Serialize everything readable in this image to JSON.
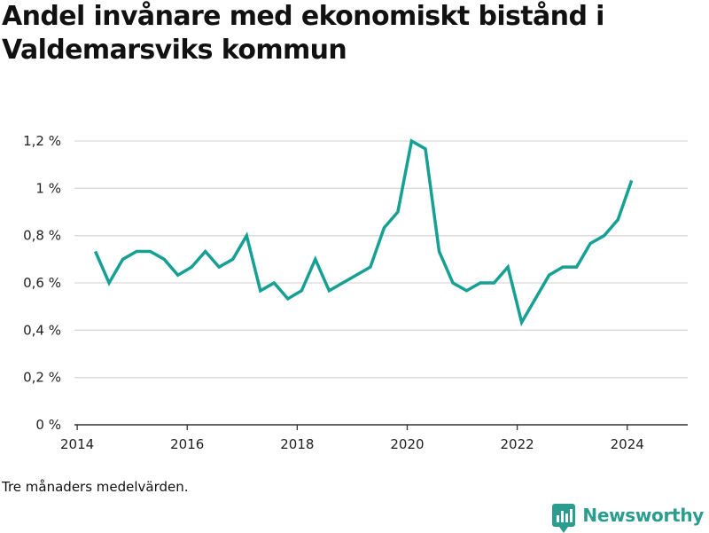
{
  "title": "Andel invånare med ekonomiskt bistånd i Valdemarsviks kommun",
  "note": "Tre månaders medelvärden.",
  "brand": {
    "name": "Newsworthy",
    "icon": "bar-chart-icon",
    "color": "#2a9d8f"
  },
  "chart_data": {
    "type": "line",
    "title": "Andel invånare med ekonomiskt bistånd i Valdemarsviks kommun",
    "xlabel": "",
    "ylabel": "",
    "xlim": [
      2013.95,
      2025.1
    ],
    "ylim": [
      0,
      1.2
    ],
    "y_ticks": [
      {
        "value": 0,
        "label": "0 %"
      },
      {
        "value": 0.2,
        "label": "0,2 %"
      },
      {
        "value": 0.4,
        "label": "0,4 %"
      },
      {
        "value": 0.6,
        "label": "0,6 %"
      },
      {
        "value": 0.8,
        "label": "0,8 %"
      },
      {
        "value": 1.0,
        "label": "1 %"
      },
      {
        "value": 1.2,
        "label": "1,2 %"
      }
    ],
    "x_ticks": [
      {
        "value": 2014,
        "label": "2014"
      },
      {
        "value": 2016,
        "label": "2016"
      },
      {
        "value": 2018,
        "label": "2018"
      },
      {
        "value": 2020,
        "label": "2020"
      },
      {
        "value": 2022,
        "label": "2022"
      },
      {
        "value": 2024,
        "label": "2024"
      }
    ],
    "grid": "horizontal",
    "line_color": "#16a094",
    "series": [
      {
        "points": [
          [
            2014.33,
            0.733
          ],
          [
            2014.58,
            0.6
          ],
          [
            2014.83,
            0.7
          ],
          [
            2015.08,
            0.733
          ],
          [
            2015.33,
            0.733
          ],
          [
            2015.58,
            0.7
          ],
          [
            2015.83,
            0.633
          ],
          [
            2016.08,
            0.667
          ],
          [
            2016.33,
            0.733
          ],
          [
            2016.58,
            0.667
          ],
          [
            2016.83,
            0.7
          ],
          [
            2017.08,
            0.8
          ],
          [
            2017.33,
            0.567
          ],
          [
            2017.58,
            0.6
          ],
          [
            2017.83,
            0.533
          ],
          [
            2018.08,
            0.567
          ],
          [
            2018.33,
            0.7
          ],
          [
            2018.58,
            0.567
          ],
          [
            2019.33,
            0.667
          ],
          [
            2019.58,
            0.833
          ],
          [
            2019.83,
            0.9
          ],
          [
            2020.08,
            1.2
          ],
          [
            2020.33,
            1.167
          ],
          [
            2020.58,
            0.733
          ],
          [
            2020.83,
            0.6
          ],
          [
            2021.08,
            0.567
          ],
          [
            2021.33,
            0.6
          ],
          [
            2021.58,
            0.6
          ],
          [
            2021.83,
            0.667
          ],
          [
            2022.08,
            0.433
          ],
          [
            2022.33,
            0.533
          ],
          [
            2022.58,
            0.633
          ],
          [
            2022.83,
            0.667
          ],
          [
            2023.08,
            0.667
          ],
          [
            2023.33,
            0.767
          ],
          [
            2023.58,
            0.8
          ],
          [
            2023.83,
            0.867
          ],
          [
            2024.08,
            1.033
          ]
        ]
      }
    ]
  }
}
